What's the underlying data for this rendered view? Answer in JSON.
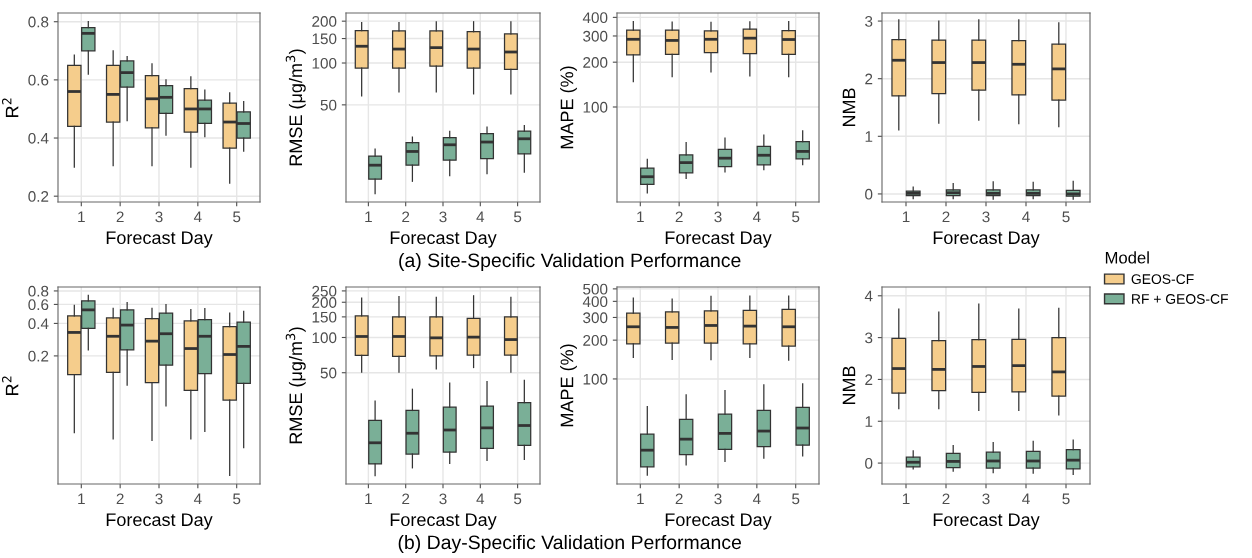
{
  "chart_data": [
    {
      "type": "box",
      "xlabel": "Forecast Day",
      "ylabel": "R$^{2}$",
      "categories": [
        "1",
        "2",
        "3",
        "4",
        "5"
      ],
      "ylim": [
        0.18,
        0.83
      ],
      "yticks": [
        0.2,
        0.4,
        0.6,
        0.8
      ],
      "grid": true,
      "annotations": [
        "(a) Site-Specific Validation Performance"
      ],
      "series": [
        {
          "color": "#f5cd8c",
          "boxes": [
            {
              "low": 0.3,
              "q1": 0.44,
              "median": 0.56,
              "q3": 0.65,
              "high": 0.685
            },
            {
              "low": 0.305,
              "q1": 0.455,
              "median": 0.55,
              "q3": 0.65,
              "high": 0.7
            },
            {
              "low": 0.305,
              "q1": 0.435,
              "median": 0.535,
              "q3": 0.615,
              "high": 0.655
            },
            {
              "low": 0.3,
              "q1": 0.42,
              "median": 0.5,
              "q3": 0.57,
              "high": 0.61
            },
            {
              "low": 0.245,
              "q1": 0.365,
              "median": 0.455,
              "q3": 0.52,
              "high": 0.555
            }
          ]
        },
        {
          "color": "#7aaf97",
          "boxes": [
            {
              "low": 0.62,
              "q1": 0.7,
              "median": 0.76,
              "q3": 0.78,
              "high": 0.8
            },
            {
              "low": 0.46,
              "q1": 0.575,
              "median": 0.625,
              "q3": 0.665,
              "high": 0.68
            },
            {
              "low": 0.41,
              "q1": 0.485,
              "median": 0.54,
              "q3": 0.58,
              "high": 0.6
            },
            {
              "low": 0.405,
              "q1": 0.45,
              "median": 0.5,
              "q3": 0.53,
              "high": 0.565
            },
            {
              "low": 0.355,
              "q1": 0.4,
              "median": 0.45,
              "q3": 0.49,
              "high": 0.525
            }
          ]
        }
      ]
    },
    {
      "type": "box",
      "xlabel": "Forecast Day",
      "ylabel": "RMSE (μg/m$^{3}$)",
      "categories": [
        "1",
        "2",
        "3",
        "4",
        "5"
      ],
      "ylim": [
        10,
        229
      ],
      "yticks": [
        50,
        100,
        150,
        200
      ],
      "log": true,
      "grid": true,
      "series": [
        {
          "color": "#f5cd8c",
          "boxes": [
            {
              "low": 58,
              "q1": 92,
              "median": 132,
              "q3": 171,
              "high": 195
            },
            {
              "low": 62,
              "q1": 92,
              "median": 126,
              "q3": 170,
              "high": 195
            },
            {
              "low": 62,
              "q1": 95,
              "median": 129,
              "q3": 170,
              "high": 198
            },
            {
              "low": 60,
              "q1": 92,
              "median": 126,
              "q3": 168,
              "high": 198
            },
            {
              "low": 60,
              "q1": 90,
              "median": 120,
              "q3": 162,
              "high": 198
            }
          ]
        },
        {
          "color": "#7aaf97",
          "boxes": [
            {
              "low": 11.5,
              "q1": 14.6,
              "median": 18.4,
              "q3": 21.4,
              "high": 24
            },
            {
              "low": 14.1,
              "q1": 18.4,
              "median": 23.1,
              "q3": 26.7,
              "high": 29.3
            },
            {
              "low": 15.5,
              "q1": 20,
              "median": 25.8,
              "q3": 29,
              "high": 32.2
            },
            {
              "low": 16,
              "q1": 20.5,
              "median": 27,
              "q3": 31,
              "high": 34.6
            },
            {
              "low": 16.4,
              "q1": 22.2,
              "median": 28.5,
              "q3": 32.4,
              "high": 35.5
            }
          ]
        }
      ]
    },
    {
      "type": "box",
      "xlabel": "Forecast Day",
      "ylabel": "MAPE (%)",
      "categories": [
        "1",
        "2",
        "3",
        "4",
        "5"
      ],
      "ylim": [
        23,
        428
      ],
      "yticks": [
        100,
        200,
        300,
        400
      ],
      "log": true,
      "grid": true,
      "series": [
        {
          "color": "#f5cd8c",
          "boxes": [
            {
              "low": 148,
              "q1": 224,
              "median": 285,
              "q3": 329,
              "high": 375
            },
            {
              "low": 160,
              "q1": 226,
              "median": 280,
              "q3": 329,
              "high": 372
            },
            {
              "low": 172,
              "q1": 232,
              "median": 285,
              "q3": 325,
              "high": 370
            },
            {
              "low": 162,
              "q1": 228,
              "median": 290,
              "q3": 333,
              "high": 373
            },
            {
              "low": 160,
              "q1": 226,
              "median": 284,
              "q3": 326,
              "high": 375
            }
          ]
        },
        {
          "color": "#7aaf97",
          "boxes": [
            {
              "low": 26.5,
              "q1": 30.2,
              "median": 34,
              "q3": 38.9,
              "high": 44.4
            },
            {
              "low": 33.1,
              "q1": 36.1,
              "median": 42.3,
              "q3": 47.6,
              "high": 57.7
            },
            {
              "low": 36.7,
              "q1": 39.8,
              "median": 45.3,
              "q3": 52,
              "high": 61.8
            },
            {
              "low": 38,
              "q1": 40.9,
              "median": 47.4,
              "q3": 54.4,
              "high": 64.6
            },
            {
              "low": 41,
              "q1": 44.9,
              "median": 50.3,
              "q3": 58.6,
              "high": 69.2
            }
          ]
        }
      ]
    },
    {
      "type": "box",
      "xlabel": "Forecast Day",
      "ylabel": "NMB",
      "categories": [
        "1",
        "2",
        "3",
        "4",
        "5"
      ],
      "ylim": [
        -0.14,
        3.14
      ],
      "yticks": [
        0,
        1,
        2,
        3
      ],
      "grid": true,
      "legend": "right",
      "legend_title": "Model",
      "series": [
        {
          "name": "GEOS-CF",
          "color": "#f5cd8c",
          "boxes": [
            {
              "low": 1.11,
              "q1": 1.7,
              "median": 2.32,
              "q3": 2.68,
              "high": 3.02
            },
            {
              "low": 1.23,
              "q1": 1.74,
              "median": 2.28,
              "q3": 2.67,
              "high": 3.0
            },
            {
              "low": 1.28,
              "q1": 1.8,
              "median": 2.28,
              "q3": 2.67,
              "high": 3.02
            },
            {
              "low": 1.22,
              "q1": 1.72,
              "median": 2.25,
              "q3": 2.66,
              "high": 3.02
            },
            {
              "low": 1.17,
              "q1": 1.63,
              "median": 2.17,
              "q3": 2.6,
              "high": 2.97
            }
          ]
        },
        {
          "name": "RF + GEOS-CF",
          "color": "#7aaf97",
          "boxes": [
            {
              "low": -0.08,
              "q1": -0.03,
              "median": 0.01,
              "q3": 0.05,
              "high": 0.12
            },
            {
              "low": -0.08,
              "q1": -0.03,
              "median": 0.02,
              "q3": 0.07,
              "high": 0.18
            },
            {
              "low": -0.09,
              "q1": -0.03,
              "median": 0.01,
              "q3": 0.07,
              "high": 0.21
            },
            {
              "low": -0.08,
              "q1": -0.03,
              "median": 0.01,
              "q3": 0.07,
              "high": 0.2
            },
            {
              "low": -0.09,
              "q1": -0.04,
              "median": 0.0,
              "q3": 0.06,
              "high": 0.22
            }
          ]
        }
      ]
    },
    {
      "type": "box",
      "xlabel": "Forecast Day",
      "ylabel": "R$^{2}$",
      "categories": [
        "1",
        "2",
        "3",
        "4",
        "5"
      ],
      "ylim": [
        0.013,
        0.87
      ],
      "yticks": [
        0.2,
        0.4,
        0.6,
        0.8
      ],
      "log": true,
      "grid": true,
      "annotations": [
        "(b) Day-Specific Validation Performance"
      ],
      "series": [
        {
          "color": "#f5cd8c",
          "boxes": [
            {
              "low": 0.039,
              "q1": 0.134,
              "median": 0.33,
              "q3": 0.47,
              "high": 0.587
            },
            {
              "low": 0.034,
              "q1": 0.141,
              "median": 0.304,
              "q3": 0.45,
              "high": 0.552
            },
            {
              "low": 0.033,
              "q1": 0.113,
              "median": 0.274,
              "q3": 0.443,
              "high": 0.552
            },
            {
              "low": 0.034,
              "q1": 0.096,
              "median": 0.234,
              "q3": 0.422,
              "high": 0.536
            },
            {
              "low": 0.0156,
              "q1": 0.078,
              "median": 0.206,
              "q3": 0.374,
              "high": 0.499
            }
          ]
        },
        {
          "color": "#7aaf97",
          "boxes": [
            {
              "low": 0.228,
              "q1": 0.36,
              "median": 0.534,
              "q3": 0.648,
              "high": 0.727
            },
            {
              "low": 0.107,
              "q1": 0.227,
              "median": 0.386,
              "q3": 0.534,
              "high": 0.622
            },
            {
              "low": 0.069,
              "q1": 0.164,
              "median": 0.321,
              "q3": 0.499,
              "high": 0.597
            },
            {
              "low": 0.04,
              "q1": 0.137,
              "median": 0.304,
              "q3": 0.434,
              "high": 0.548
            },
            {
              "low": 0.0282,
              "q1": 0.111,
              "median": 0.245,
              "q3": 0.412,
              "high": 0.518
            }
          ]
        }
      ]
    },
    {
      "type": "box",
      "xlabel": "Forecast Day",
      "ylabel": "RMSE (μg/m$^{3}$)",
      "categories": [
        "1",
        "2",
        "3",
        "4",
        "5"
      ],
      "ylim": [
        5.6,
        270
      ],
      "yticks": [
        50,
        100,
        150,
        200,
        250
      ],
      "log": true,
      "grid": true,
      "series": [
        {
          "color": "#f5cd8c",
          "boxes": [
            {
              "low": 50.7,
              "q1": 70.2,
              "median": 102,
              "q3": 153,
              "high": 217
            },
            {
              "low": 50.7,
              "q1": 68.8,
              "median": 102,
              "q3": 150,
              "high": 223
            },
            {
              "low": 53.9,
              "q1": 69.8,
              "median": 99.3,
              "q3": 150,
              "high": 220
            },
            {
              "low": 55.4,
              "q1": 70.7,
              "median": 100.7,
              "q3": 146,
              "high": 227
            },
            {
              "low": 50.7,
              "q1": 70.7,
              "median": 96,
              "q3": 150,
              "high": 220
            }
          ]
        },
        {
          "color": "#7aaf97",
          "boxes": [
            {
              "low": 6.6,
              "q1": 8.3,
              "median": 12.6,
              "q3": 19.6,
              "high": 28.6
            },
            {
              "low": 7.7,
              "q1": 10.1,
              "median": 15.2,
              "q3": 23.8,
              "high": 36.1
            },
            {
              "low": 8.4,
              "q1": 10.5,
              "median": 16.2,
              "q3": 25.4,
              "high": 40.8
            },
            {
              "low": 8.9,
              "q1": 11.3,
              "median": 16.9,
              "q3": 25.9,
              "high": 42
            },
            {
              "low": 9.1,
              "q1": 12,
              "median": 17.7,
              "q3": 27.7,
              "high": 43.1
            }
          ]
        }
      ]
    },
    {
      "type": "box",
      "xlabel": "Forecast Day",
      "ylabel": "MAPE (%)",
      "categories": [
        "1",
        "2",
        "3",
        "4",
        "5"
      ],
      "ylim": [
        15.3,
        517
      ],
      "yticks": [
        100,
        200,
        300,
        400,
        500
      ],
      "log": true,
      "grid": true,
      "series": [
        {
          "color": "#f5cd8c",
          "boxes": [
            {
              "low": 147,
              "q1": 187,
              "median": 254,
              "q3": 324,
              "high": 424
            },
            {
              "low": 142,
              "q1": 190,
              "median": 251,
              "q3": 332,
              "high": 417
            },
            {
              "low": 141,
              "q1": 190,
              "median": 260,
              "q3": 338,
              "high": 437
            },
            {
              "low": 147,
              "q1": 187,
              "median": 257,
              "q3": 340,
              "high": 440
            },
            {
              "low": 140,
              "q1": 180,
              "median": 254,
              "q3": 346,
              "high": 440
            }
          ]
        },
        {
          "color": "#7aaf97",
          "boxes": [
            {
              "low": 17.9,
              "q1": 20.8,
              "median": 28,
              "q3": 37.3,
              "high": 60.9
            },
            {
              "low": 21.5,
              "q1": 25.9,
              "median": 34.1,
              "q3": 48.6,
              "high": 75.1
            },
            {
              "low": 22.9,
              "q1": 28.4,
              "median": 37.8,
              "q3": 53.4,
              "high": 81.2
            },
            {
              "low": 24.3,
              "q1": 29.8,
              "median": 39.4,
              "q3": 57,
              "high": 89.8
            },
            {
              "low": 25.3,
              "q1": 30.6,
              "median": 41.6,
              "q3": 60.2,
              "high": 91.4
            }
          ]
        }
      ]
    },
    {
      "type": "box",
      "xlabel": "Forecast Day",
      "ylabel": "NMB",
      "categories": [
        "1",
        "2",
        "3",
        "4",
        "5"
      ],
      "ylim": [
        -0.5,
        4.21
      ],
      "yticks": [
        0,
        1,
        2,
        3,
        4
      ],
      "grid": true,
      "series": [
        {
          "color": "#f5cd8c",
          "boxes": [
            {
              "low": 1.3,
              "q1": 1.67,
              "median": 2.26,
              "q3": 2.98,
              "high": 3.68
            },
            {
              "low": 1.3,
              "q1": 1.73,
              "median": 2.24,
              "q3": 2.93,
              "high": 3.61
            },
            {
              "low": 1.26,
              "q1": 1.69,
              "median": 2.31,
              "q3": 2.95,
              "high": 3.8
            },
            {
              "low": 1.26,
              "q1": 1.7,
              "median": 2.33,
              "q3": 2.96,
              "high": 3.68
            },
            {
              "low": 1.15,
              "q1": 1.6,
              "median": 2.18,
              "q3": 3.0,
              "high": 3.7
            }
          ]
        },
        {
          "color": "#7aaf97",
          "boxes": [
            {
              "low": -0.14,
              "q1": -0.09,
              "median": 0.02,
              "q3": 0.14,
              "high": 0.29
            },
            {
              "low": -0.19,
              "q1": -0.11,
              "median": 0.04,
              "q3": 0.23,
              "high": 0.42
            },
            {
              "low": -0.23,
              "q1": -0.12,
              "median": 0.05,
              "q3": 0.26,
              "high": 0.49
            },
            {
              "low": -0.24,
              "q1": -0.12,
              "median": 0.05,
              "q3": 0.28,
              "high": 0.52
            },
            {
              "low": -0.27,
              "q1": -0.14,
              "median": 0.07,
              "q3": 0.32,
              "high": 0.55
            }
          ]
        }
      ]
    }
  ]
}
